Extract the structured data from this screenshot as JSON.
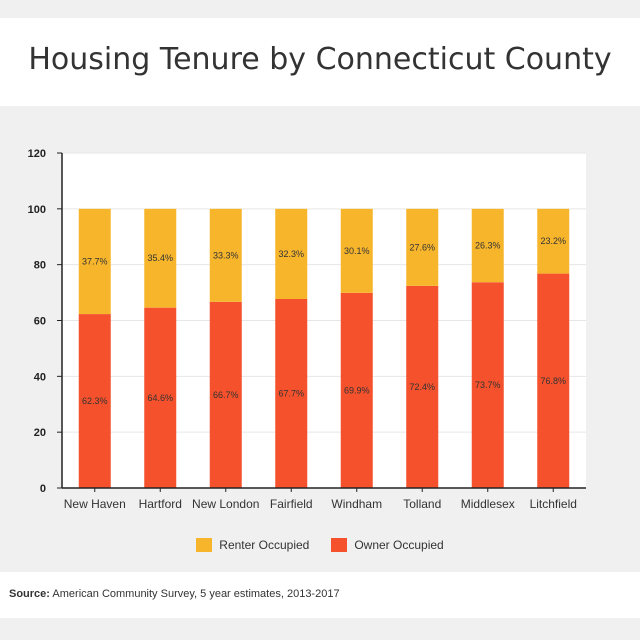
{
  "chart_data": {
    "type": "bar",
    "stacked": true,
    "title": "Housing Tenure by Connecticut County",
    "categories": [
      "New Haven",
      "Hartford",
      "New London",
      "Fairfield",
      "Windham",
      "Tolland",
      "Middlesex",
      "Litchfield"
    ],
    "series": [
      {
        "name": "Owner Occupied",
        "color": "#f4512c",
        "values": [
          62.3,
          64.6,
          66.7,
          67.7,
          69.9,
          72.4,
          73.7,
          76.8
        ],
        "labels": [
          "62.3%",
          "64.6%",
          "66.7%",
          "67.7%",
          "69.9%",
          "72.4%",
          "73.7%",
          "76.8%"
        ]
      },
      {
        "name": "Renter Occupied",
        "color": "#f7b52c",
        "values": [
          37.7,
          35.4,
          33.3,
          32.3,
          30.1,
          27.6,
          26.3,
          23.2
        ],
        "labels": [
          "37.7%",
          "35.4%",
          "33.3%",
          "32.3%",
          "30.1%",
          "27.6%",
          "26.3%",
          "23.2%"
        ]
      }
    ],
    "ylim": [
      0,
      120
    ],
    "yticks": [
      "0",
      "20",
      "40",
      "60",
      "80",
      "100",
      "120"
    ],
    "xlabel": "",
    "ylabel": "",
    "grid": true,
    "legend": {
      "position": "bottom",
      "items": [
        "Renter Occupied",
        "Owner Occupied"
      ]
    }
  },
  "source": {
    "label": "Source:",
    "text": "American Community Survey, 5 year estimates, 2013-2017"
  }
}
